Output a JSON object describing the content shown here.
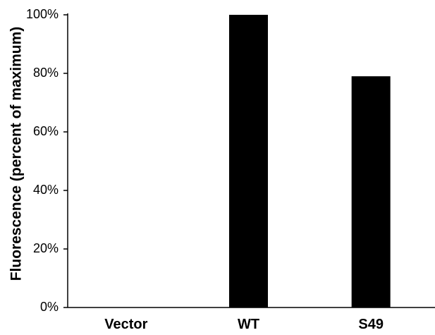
{
  "chart_data": {
    "type": "bar",
    "title": "",
    "xlabel": "",
    "ylabel": "Fluorescence (percent of maximum)",
    "categories": [
      "Vector",
      "WT",
      "S49"
    ],
    "values": [
      0,
      100,
      79
    ],
    "ylim": [
      0,
      100
    ],
    "yticks": [
      "0%",
      "20%",
      "40%",
      "60%",
      "80%",
      "100%"
    ],
    "grid": false,
    "legend": "none",
    "bar_color": "#000000"
  }
}
